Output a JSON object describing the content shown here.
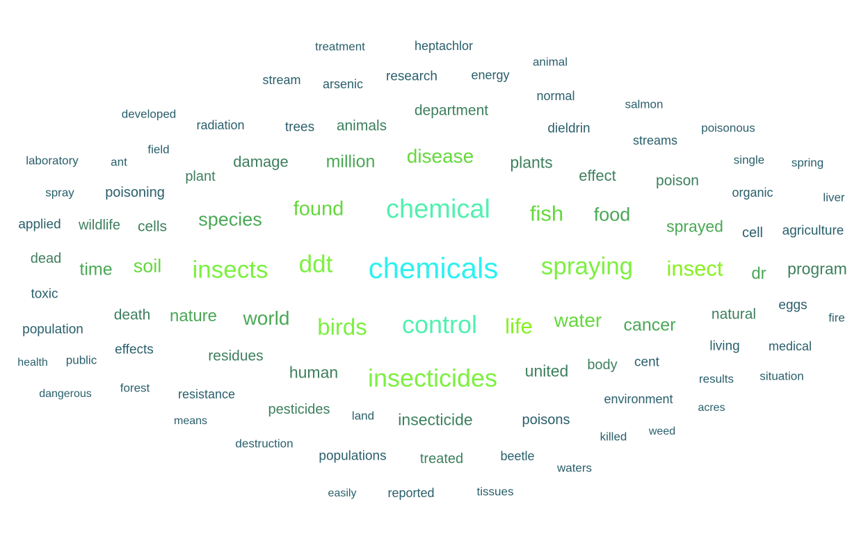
{
  "colors": {
    "teal": "#2a5f6b",
    "green": "#3d7f5e",
    "mid": "#4aa856",
    "lime": "#64d83c",
    "bright": "#7cf040",
    "aqua": "#52f0b0",
    "cyan": "#2ff0f0",
    "chartreuse": "#86f020"
  },
  "words": [
    {
      "text": "treatment",
      "c": "teal"
    },
    {
      "text": "heptachlor",
      "c": "teal"
    },
    {
      "text": "animal",
      "c": "teal"
    },
    {
      "text": "stream",
      "c": "teal"
    },
    {
      "text": "arsenic",
      "c": "teal"
    },
    {
      "text": "research",
      "c": "teal"
    },
    {
      "text": "energy",
      "c": "teal"
    },
    {
      "text": "normal",
      "c": "teal"
    },
    {
      "text": "salmon",
      "c": "teal"
    },
    {
      "text": "developed",
      "c": "teal"
    },
    {
      "text": "radiation",
      "c": "teal"
    },
    {
      "text": "trees",
      "c": "teal"
    },
    {
      "text": "animals",
      "c": "green"
    },
    {
      "text": "department",
      "c": "green"
    },
    {
      "text": "dieldrin",
      "c": "teal"
    },
    {
      "text": "poisonous",
      "c": "teal"
    },
    {
      "text": "streams",
      "c": "teal"
    },
    {
      "text": "laboratory",
      "c": "teal"
    },
    {
      "text": "ant",
      "c": "teal"
    },
    {
      "text": "field",
      "c": "teal"
    },
    {
      "text": "damage",
      "c": "green"
    },
    {
      "text": "million",
      "c": "mid"
    },
    {
      "text": "disease",
      "c": "lime"
    },
    {
      "text": "plants",
      "c": "green"
    },
    {
      "text": "single",
      "c": "teal"
    },
    {
      "text": "spring",
      "c": "teal"
    },
    {
      "text": "plant",
      "c": "green"
    },
    {
      "text": "effect",
      "c": "green"
    },
    {
      "text": "poison",
      "c": "green"
    },
    {
      "text": "spray",
      "c": "teal"
    },
    {
      "text": "poisoning",
      "c": "teal"
    },
    {
      "text": "organic",
      "c": "teal"
    },
    {
      "text": "liver",
      "c": "teal"
    },
    {
      "text": "chemical",
      "c": "aqua"
    },
    {
      "text": "found",
      "c": "lime"
    },
    {
      "text": "fish",
      "c": "lime"
    },
    {
      "text": "food",
      "c": "mid"
    },
    {
      "text": "species",
      "c": "mid"
    },
    {
      "text": "applied",
      "c": "teal"
    },
    {
      "text": "wildlife",
      "c": "green"
    },
    {
      "text": "cells",
      "c": "green"
    },
    {
      "text": "sprayed",
      "c": "mid"
    },
    {
      "text": "cell",
      "c": "teal"
    },
    {
      "text": "agriculture",
      "c": "teal"
    },
    {
      "text": "dead",
      "c": "green"
    },
    {
      "text": "ddt",
      "c": "bright"
    },
    {
      "text": "chemicals",
      "c": "cyan"
    },
    {
      "text": "spraying",
      "c": "bright"
    },
    {
      "text": "insect",
      "c": "chartreuse"
    },
    {
      "text": "time",
      "c": "mid"
    },
    {
      "text": "soil",
      "c": "lime"
    },
    {
      "text": "insects",
      "c": "bright"
    },
    {
      "text": "dr",
      "c": "mid"
    },
    {
      "text": "program",
      "c": "green"
    },
    {
      "text": "toxic",
      "c": "teal"
    },
    {
      "text": "eggs",
      "c": "teal"
    },
    {
      "text": "death",
      "c": "green"
    },
    {
      "text": "nature",
      "c": "mid"
    },
    {
      "text": "world",
      "c": "mid"
    },
    {
      "text": "birds",
      "c": "bright"
    },
    {
      "text": "control",
      "c": "aqua"
    },
    {
      "text": "life",
      "c": "chartreuse"
    },
    {
      "text": "water",
      "c": "lime"
    },
    {
      "text": "cancer",
      "c": "mid"
    },
    {
      "text": "natural",
      "c": "green"
    },
    {
      "text": "fire",
      "c": "teal"
    },
    {
      "text": "population",
      "c": "teal"
    },
    {
      "text": "living",
      "c": "teal"
    },
    {
      "text": "medical",
      "c": "teal"
    },
    {
      "text": "effects",
      "c": "teal"
    },
    {
      "text": "health",
      "c": "teal"
    },
    {
      "text": "public",
      "c": "teal"
    },
    {
      "text": "residues",
      "c": "green"
    },
    {
      "text": "body",
      "c": "green"
    },
    {
      "text": "cent",
      "c": "teal"
    },
    {
      "text": "human",
      "c": "green"
    },
    {
      "text": "insecticides",
      "c": "bright"
    },
    {
      "text": "united",
      "c": "green"
    },
    {
      "text": "results",
      "c": "teal"
    },
    {
      "text": "situation",
      "c": "teal"
    },
    {
      "text": "dangerous",
      "c": "teal"
    },
    {
      "text": "forest",
      "c": "teal"
    },
    {
      "text": "resistance",
      "c": "teal"
    },
    {
      "text": "environment",
      "c": "teal"
    },
    {
      "text": "acres",
      "c": "teal"
    },
    {
      "text": "pesticides",
      "c": "green"
    },
    {
      "text": "land",
      "c": "teal"
    },
    {
      "text": "insecticide",
      "c": "green"
    },
    {
      "text": "poisons",
      "c": "teal"
    },
    {
      "text": "means",
      "c": "teal"
    },
    {
      "text": "killed",
      "c": "teal"
    },
    {
      "text": "weed",
      "c": "teal"
    },
    {
      "text": "destruction",
      "c": "teal"
    },
    {
      "text": "populations",
      "c": "teal"
    },
    {
      "text": "treated",
      "c": "green"
    },
    {
      "text": "beetle",
      "c": "teal"
    },
    {
      "text": "waters",
      "c": "teal"
    },
    {
      "text": "easily",
      "c": "teal"
    },
    {
      "text": "reported",
      "c": "teal"
    },
    {
      "text": "tissues",
      "c": "teal"
    }
  ]
}
